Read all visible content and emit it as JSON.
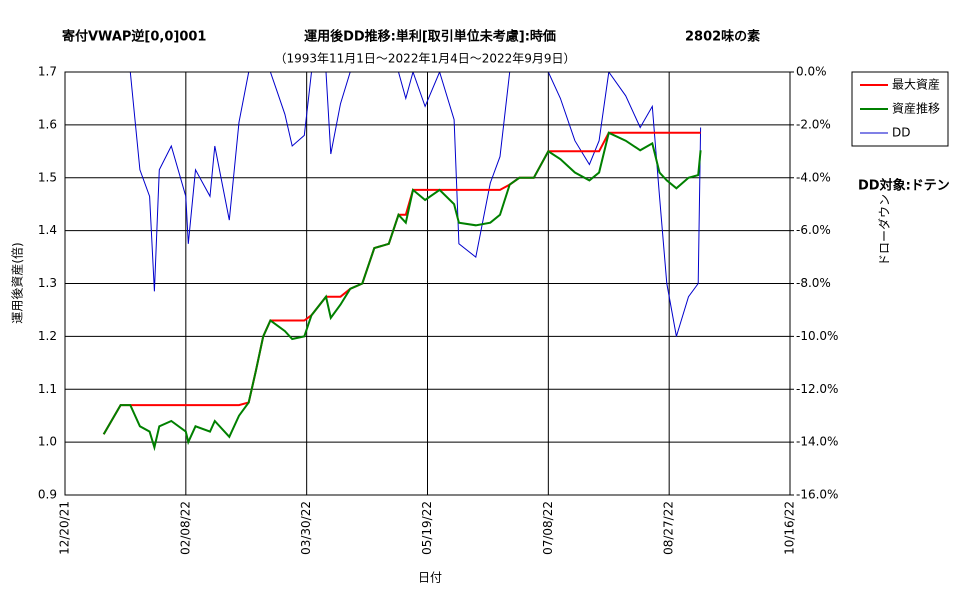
{
  "chart_data": {
    "type": "line",
    "title": "運用後DD推移:単利[取引単位未考慮]:時価",
    "subtitle": "（1993年11月1日～2022年1月4日～2022年9月9日）",
    "annotations": [
      "寄付VWAP逆[0,0]001",
      "2802味の素",
      "DD対象:ドテン"
    ],
    "xlabel": "日付",
    "ylabel": "運用後資産(倍)",
    "y2label": "ドローダウン",
    "x": [
      "01/05/22",
      "01/12/22",
      "01/16/22",
      "01/20/22",
      "01/24/22",
      "01/26/22",
      "01/28/22",
      "02/02/22",
      "02/08/22",
      "02/09/22",
      "02/12/22",
      "02/18/22",
      "02/20/22",
      "02/26/22",
      "03/02/22",
      "03/06/22",
      "03/09/22",
      "03/12/22",
      "03/15/22",
      "03/18/22",
      "03/21/22",
      "03/24/22",
      "03/29/22",
      "04/01/22",
      "04/07/22",
      "04/09/22",
      "04/13/22",
      "04/17/22",
      "04/22/22",
      "04/27/22",
      "05/03/22",
      "05/07/22",
      "05/10/22",
      "05/13/22",
      "05/18/22",
      "05/24/22",
      "05/30/22",
      "06/01/22",
      "06/08/22",
      "06/14/22",
      "06/18/22",
      "06/22/22",
      "06/26/22",
      "07/02/22",
      "07/08/22",
      "07/13/22",
      "07/19/22",
      "07/25/22",
      "07/29/22",
      "08/02/22",
      "08/09/22",
      "08/15/22",
      "08/20/22",
      "08/23/22",
      "08/26/22",
      "08/30/22",
      "09/04/22",
      "09/08/22",
      "09/09/22"
    ],
    "series": [
      {
        "name": "最大資産",
        "color": "#ff0000",
        "width": 2,
        "values": [
          1.015,
          1.07,
          1.07,
          1.07,
          1.07,
          1.07,
          1.07,
          1.07,
          1.07,
          1.07,
          1.07,
          1.07,
          1.07,
          1.07,
          1.07,
          1.075,
          1.135,
          1.2,
          1.23,
          1.23,
          1.23,
          1.23,
          1.23,
          1.24,
          1.275,
          1.275,
          1.275,
          1.29,
          1.3,
          1.367,
          1.375,
          1.43,
          1.43,
          1.477,
          1.477,
          1.477,
          1.477,
          1.477,
          1.477,
          1.477,
          1.477,
          1.487,
          1.5,
          1.5,
          1.55,
          1.55,
          1.55,
          1.55,
          1.55,
          1.585,
          1.585,
          1.585,
          1.585,
          1.585,
          1.585,
          1.585,
          1.585,
          1.585,
          1.585
        ]
      },
      {
        "name": "資産推移",
        "color": "#008000",
        "width": 2,
        "values": [
          1.015,
          1.07,
          1.07,
          1.03,
          1.02,
          0.99,
          1.03,
          1.04,
          1.02,
          1.0,
          1.03,
          1.02,
          1.04,
          1.01,
          1.05,
          1.075,
          1.135,
          1.2,
          1.23,
          1.22,
          1.21,
          1.195,
          1.2,
          1.24,
          1.275,
          1.235,
          1.26,
          1.29,
          1.3,
          1.367,
          1.375,
          1.43,
          1.415,
          1.477,
          1.458,
          1.477,
          1.45,
          1.415,
          1.41,
          1.415,
          1.43,
          1.487,
          1.5,
          1.5,
          1.55,
          1.535,
          1.51,
          1.495,
          1.51,
          1.585,
          1.57,
          1.552,
          1.565,
          1.51,
          1.495,
          1.48,
          1.5,
          1.505,
          1.552
        ]
      },
      {
        "name": "DD",
        "color": "#0000cc",
        "width": 1,
        "axis": "y2",
        "values": [
          0,
          0,
          0,
          -3.7,
          -4.7,
          -8.3,
          -3.7,
          -2.8,
          -4.7,
          -6.5,
          -3.7,
          -4.7,
          -2.8,
          -5.6,
          -1.9,
          0,
          0,
          0,
          0,
          -0.8,
          -1.6,
          -2.8,
          -2.4,
          0,
          0,
          -3.1,
          -1.2,
          0,
          0,
          0,
          0,
          0,
          -1.0,
          0,
          -1.3,
          0,
          -1.8,
          -6.5,
          -7.0,
          -4.2,
          -3.2,
          0,
          0,
          0,
          0,
          -1.0,
          -2.6,
          -3.5,
          -2.6,
          0,
          -0.9,
          -2.1,
          -1.3,
          -4.7,
          -8.0,
          -10.0,
          -8.5,
          -8.0,
          -2.1
        ]
      }
    ],
    "xlim": [
      "12/20/21",
      "10/16/22"
    ],
    "xticks": [
      "12/20/21",
      "02/08/22",
      "03/30/22",
      "05/19/22",
      "07/08/22",
      "08/27/22",
      "10/16/22"
    ],
    "ylim": [
      0.9,
      1.7
    ],
    "yticks": [
      0.9,
      {
        "value": 1,
        "label": "1.0"
      },
      1.1,
      1.2,
      1.3,
      1.4,
      1.5,
      1.6,
      1.7
    ],
    "y2lim": [
      -16,
      0
    ],
    "y2ticks": [
      {
        "value": -16,
        "label": "-16.0%"
      },
      {
        "value": -14,
        "label": "-14.0%"
      },
      {
        "value": -12,
        "label": "-12.0%"
      },
      {
        "value": -10,
        "label": "-10.0%"
      },
      {
        "value": -8,
        "label": "-8.0%"
      },
      {
        "value": -6,
        "label": "-6.0%"
      },
      {
        "value": -4,
        "label": "-4.0%"
      },
      {
        "value": -2,
        "label": "-2.0%"
      },
      {
        "value": 0,
        "label": "0.0%"
      }
    ],
    "y2tick_color": "#ff0000",
    "grid": true,
    "legend": "right"
  }
}
